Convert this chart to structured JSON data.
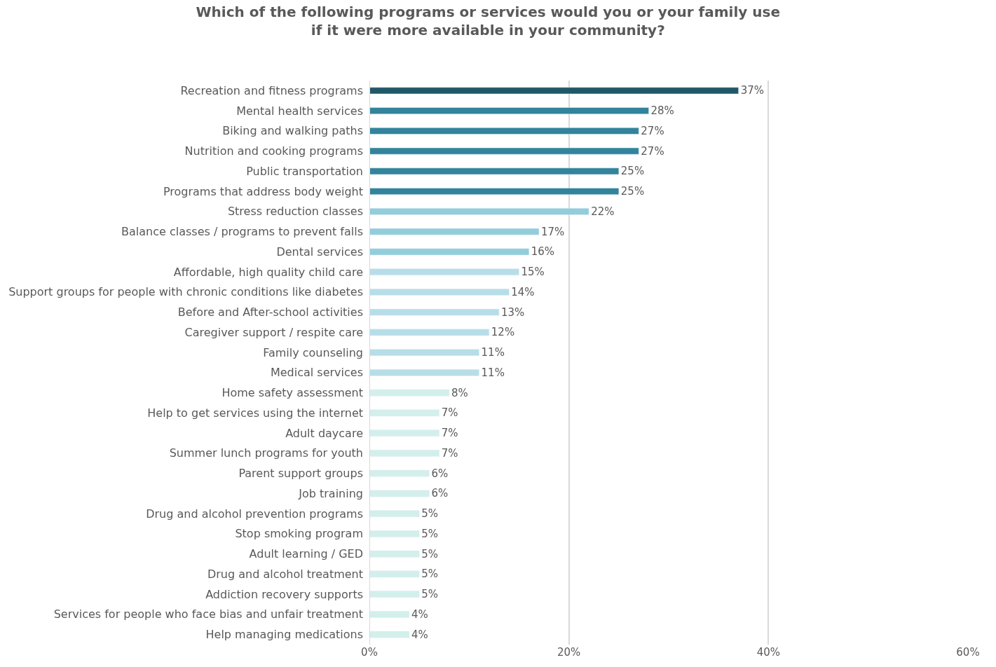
{
  "chart_data": {
    "type": "bar",
    "orientation": "horizontal",
    "title": "Which of the following programs or services would you or your family use\nif it were more available in your community?",
    "categories": [
      "Recreation and fitness programs",
      "Mental health services",
      "Biking and walking paths",
      "Nutrition and cooking programs",
      "Public transportation",
      "Programs that address body weight",
      "Stress reduction classes",
      "Balance classes / programs to prevent falls",
      "Dental services",
      "Affordable, high quality child care",
      "Support groups for people with chronic conditions like diabetes",
      "Before and After-school activities",
      "Caregiver support / respite care",
      "Family counseling",
      "Medical services",
      "Home safety assessment",
      "Help to get services using the internet",
      "Adult daycare",
      "Summer lunch programs for youth",
      "Parent support groups",
      "Job training",
      "Drug and alcohol prevention programs",
      "Stop smoking program",
      "Adult learning / GED",
      "Drug and alcohol treatment",
      "Addiction recovery supports",
      "Services for people who face bias and unfair treatment",
      "Help managing medications"
    ],
    "values": [
      37,
      28,
      27,
      27,
      25,
      25,
      22,
      17,
      16,
      15,
      14,
      13,
      12,
      11,
      11,
      8,
      7,
      7,
      7,
      6,
      6,
      5,
      5,
      5,
      5,
      5,
      4,
      4
    ],
    "value_labels": [
      "37%",
      "28%",
      "27%",
      "27%",
      "25%",
      "25%",
      "22%",
      "17%",
      "16%",
      "15%",
      "14%",
      "13%",
      "12%",
      "11%",
      "11%",
      "8%",
      "7%",
      "7%",
      "7%",
      "6%",
      "6%",
      "5%",
      "5%",
      "5%",
      "5%",
      "5%",
      "4%",
      "4%"
    ],
    "colors": [
      "#215868",
      "#31849b",
      "#31849b",
      "#31849b",
      "#31849b",
      "#31849b",
      "#92cddc",
      "#92cddc",
      "#92cddc",
      "#b7dee8",
      "#b7dee8",
      "#b7dee8",
      "#b7dee8",
      "#b7dee8",
      "#b7dee8",
      "#d2efeb",
      "#d2efeb",
      "#d2efeb",
      "#d2efeb",
      "#d2efeb",
      "#d2efeb",
      "#d2efeb",
      "#d2efeb",
      "#d2efeb",
      "#d2efeb",
      "#d2efeb",
      "#d2efeb",
      "#d2efeb"
    ],
    "xlim": [
      0,
      60
    ],
    "xticks": [
      {
        "value": 0,
        "label": "0%"
      },
      {
        "value": 20,
        "label": "20%"
      },
      {
        "value": 40,
        "label": "40%"
      },
      {
        "value": 60,
        "label": "60%"
      }
    ],
    "grid": "x",
    "legend": false
  }
}
